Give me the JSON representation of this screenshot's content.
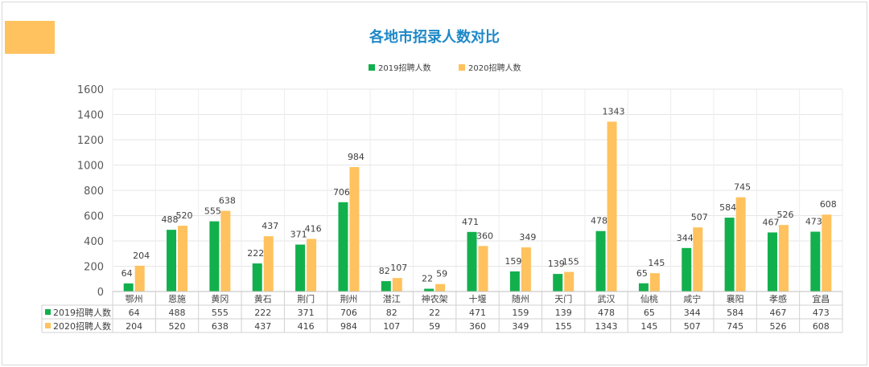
{
  "title": "各地市招录人数对比",
  "colors": {
    "series_2019": "#12b04d",
    "series_2020": "#ffc25e",
    "title": "#1e88c7",
    "accent": "#ffc25e"
  },
  "chart_data": {
    "type": "bar",
    "title": "各地市招录人数对比",
    "categories": [
      "鄂州",
      "恩施",
      "黄冈",
      "黄石",
      "荆门",
      "荆州",
      "潜江",
      "神农架",
      "十堰",
      "随州",
      "天门",
      "武汉",
      "仙桃",
      "咸宁",
      "襄阳",
      "孝感",
      "宜昌"
    ],
    "series": [
      {
        "name": "2019招聘人数",
        "values": [
          64,
          488,
          555,
          222,
          371,
          706,
          82,
          22,
          471,
          159,
          139,
          478,
          65,
          344,
          584,
          467,
          473
        ]
      },
      {
        "name": "2020招聘人数",
        "values": [
          204,
          520,
          638,
          437,
          416,
          984,
          107,
          59,
          360,
          349,
          155,
          1343,
          145,
          507,
          745,
          526,
          608
        ]
      }
    ],
    "yticks": [
      0,
      200,
      400,
      600,
      800,
      1000,
      1200,
      1400,
      1600
    ],
    "ylim": [
      0,
      1600
    ],
    "legend_position": "top",
    "grid": true,
    "data_table": true
  }
}
